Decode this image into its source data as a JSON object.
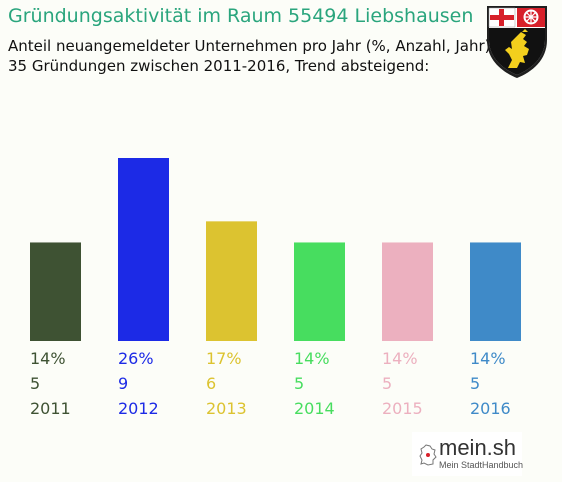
{
  "header": {
    "title": "Gründungsaktivität im Raum 55494 Liebshausen",
    "subtitle_line1": "Anteil neuangemeldeter Unternehmen pro Jahr (%, Anzahl, Jahr)",
    "subtitle_line2": "35 Gründungen zwischen 2011-2016, Trend absteigend:"
  },
  "crest": {
    "icon": "rheinland-pfalz-coat-of-arms"
  },
  "chart_data": {
    "type": "bar",
    "categories": [
      "2011",
      "2012",
      "2013",
      "2014",
      "2015",
      "2016"
    ],
    "values": [
      14,
      26,
      17,
      14,
      14,
      14
    ],
    "counts": [
      5,
      9,
      6,
      5,
      5,
      5
    ],
    "percent_labels": [
      "14%",
      "26%",
      "17%",
      "14%",
      "14%",
      "14%"
    ],
    "colors": [
      "#3e5233",
      "#1c2ae6",
      "#dcc330",
      "#47dd5f",
      "#ecb0bf",
      "#3f8ac8"
    ],
    "axes": "none",
    "grid": false
  },
  "logo": {
    "main": "mein.sh",
    "sub": "Mein StadtHandbuch",
    "icon": "germany-map-icon"
  }
}
